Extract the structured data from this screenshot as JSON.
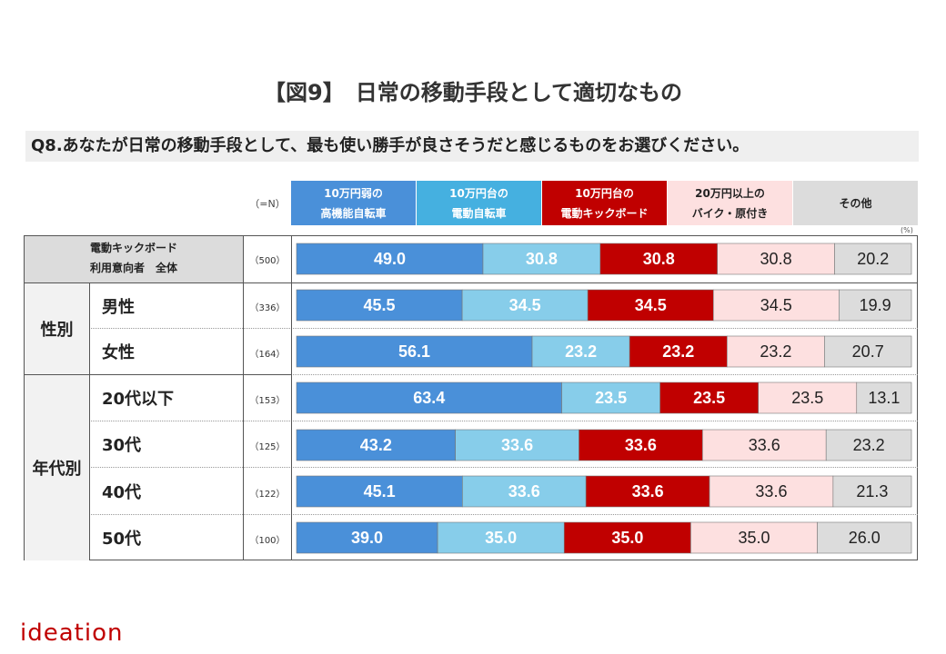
{
  "title": "【図9】　日常の移動手段として適切なもの",
  "question": "Q8.あなたが日常の移動手段として、最も使い勝手が良さそうだと感じるものをお選びください。",
  "n_header": "（=N）",
  "pct_unit": "(%)",
  "legend": [
    {
      "line1": "10万円弱の",
      "line2": "高機能自転車",
      "color": "#4a90d9",
      "text_color": "#ffffff"
    },
    {
      "line1": "10万円台の",
      "line2": "電動自転車",
      "color": "#45b0e0",
      "text_color": "#ffffff"
    },
    {
      "line1": "10万円台の",
      "line2": "電動キックボード",
      "color": "#c00000",
      "text_color": "#ffffff"
    },
    {
      "line1": "20万円以上の",
      "line2": "バイク・原付き",
      "color": "#fde0e0",
      "text_color": "#222222"
    },
    {
      "line1": "その他",
      "line2": "",
      "color": "#dcdcdc",
      "text_color": "#222222"
    }
  ],
  "rows": [
    {
      "n": "（500）"
    },
    {
      "label": "男性",
      "n": "（336）"
    },
    {
      "label": "女性",
      "n": "（164）"
    },
    {
      "label": "20代以下",
      "n": "（153）"
    },
    {
      "label": "30代",
      "n": "（125）"
    },
    {
      "label": "40代",
      "n": "（122）"
    },
    {
      "label": "50代",
      "n": "（100）"
    }
  ],
  "total_label": {
    "line1": "電動キックボード",
    "line2": "利用意向者　全体"
  },
  "groups": {
    "gender": "性別",
    "age": "年代別"
  },
  "logo": "ideation",
  "chart_data": {
    "type": "bar",
    "orientation": "horizontal",
    "stacked": true,
    "categories": [
      "電動キックボード利用意向者 全体",
      "男性",
      "女性",
      "20代以下",
      "30代",
      "40代",
      "50代"
    ],
    "series": [
      {
        "name": "10万円弱の高機能自転車",
        "color": "#4a90d9",
        "label_color": "#ffffff",
        "values": [
          49.0,
          45.5,
          56.1,
          63.4,
          43.2,
          45.1,
          39.0
        ]
      },
      {
        "name": "10万円台の電動自転車",
        "color": "#87cdea",
        "label_color": "#ffffff",
        "values": [
          30.8,
          34.5,
          23.2,
          23.5,
          33.6,
          33.6,
          35.0
        ]
      },
      {
        "name": "10万円台の電動キックボード",
        "color": "#c00000",
        "label_color": "#ffffff",
        "values": [
          30.8,
          34.5,
          23.2,
          23.5,
          33.6,
          33.6,
          35.0
        ]
      },
      {
        "name": "20万円以上のバイク・原付き",
        "color": "#fde0e0",
        "label_color": "#222222",
        "values": [
          30.8,
          34.5,
          23.2,
          23.5,
          33.6,
          33.6,
          35.0
        ]
      },
      {
        "name": "その他",
        "color": "#dcdcdc",
        "label_color": "#222222",
        "values": [
          20.2,
          19.9,
          20.7,
          13.1,
          23.2,
          21.3,
          26.0
        ]
      }
    ],
    "value_format": "0.0",
    "grid": false,
    "legend_position": "top"
  }
}
